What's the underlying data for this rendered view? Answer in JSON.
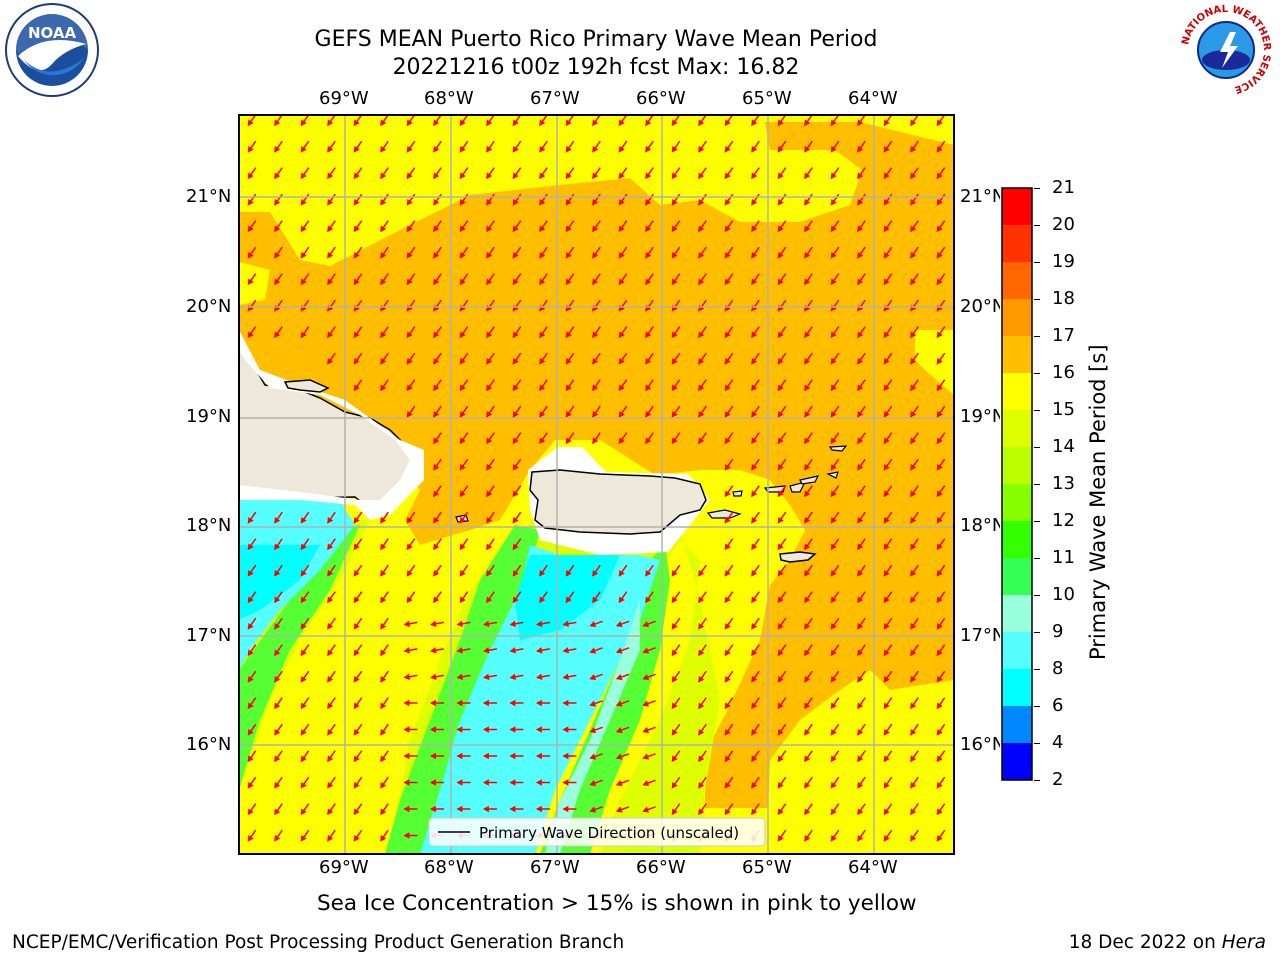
{
  "title": {
    "line1": "GEFS MEAN Puerto Rico Primary Wave Mean Period",
    "line2": "20221216 t00z 192h fcst   Max: 16.82"
  },
  "map": {
    "lon_ticks": [
      "69°W",
      "68°W",
      "67°W",
      "66°W",
      "65°W",
      "64°W"
    ],
    "lat_ticks": [
      "21°N",
      "20°N",
      "19°N",
      "18°N",
      "17°N",
      "16°N"
    ],
    "legend_label": "Primary Wave Direction (unscaled)",
    "arrow_color": "#ff0000",
    "land_color": "#ede8da"
  },
  "colorbar": {
    "label": "Primary Wave Mean Period [s]",
    "ticks": [
      "21",
      "20",
      "19",
      "18",
      "17",
      "16",
      "15",
      "14",
      "13",
      "12",
      "11",
      "10",
      "9",
      "8",
      "6",
      "4",
      "2"
    ],
    "colors": [
      "#ff0000",
      "#ff3300",
      "#ff6600",
      "#ff9900",
      "#ffbf00",
      "#ffff00",
      "#ddff00",
      "#bbff00",
      "#88ff00",
      "#33ff00",
      "#33ff55",
      "#99ffdd",
      "#55ffff",
      "#00ffff",
      "#0088ff",
      "#0000ff"
    ]
  },
  "note": "Sea Ice Concentration > 15% is shown in pink to yellow",
  "footer": {
    "left": "NCEP/EMC/Verification Post Processing Product Generation Branch",
    "right_prefix": "18 Dec 2022 on ",
    "right_machine": "Hera"
  },
  "logos": {
    "noaa_text": "NOAA",
    "nws_text": "NATIONAL WEATHER SERVICE"
  }
}
